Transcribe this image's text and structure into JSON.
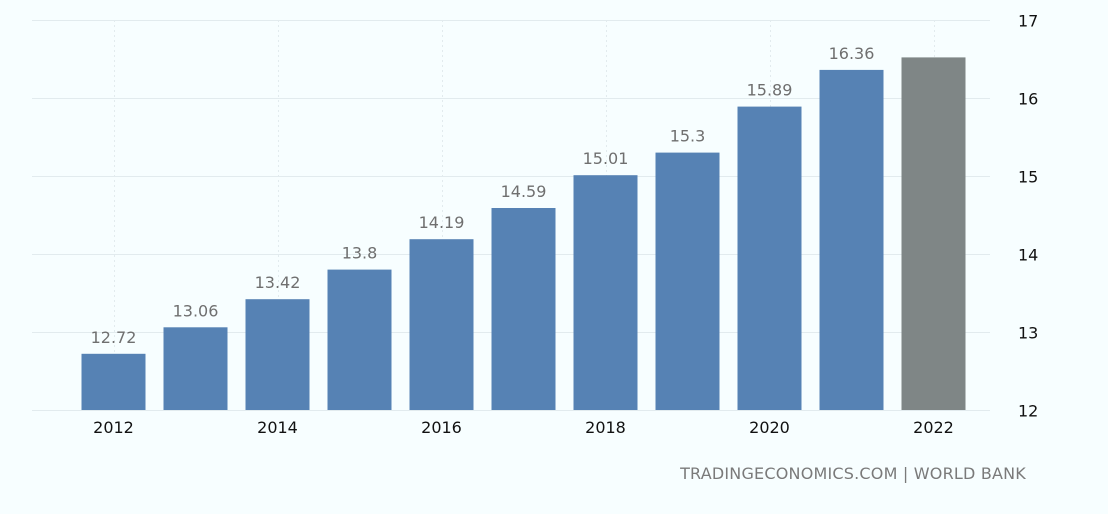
{
  "chart_data": {
    "type": "bar",
    "categories": [
      "2012",
      "2013",
      "2014",
      "2015",
      "2016",
      "2017",
      "2018",
      "2019",
      "2020",
      "2021",
      "2022"
    ],
    "values": [
      12.72,
      13.06,
      13.42,
      13.8,
      14.19,
      14.59,
      15.01,
      15.3,
      15.89,
      16.36,
      16.52
    ],
    "data_labels": [
      "12.72",
      "13.06",
      "13.42",
      "13.8",
      "14.19",
      "14.59",
      "15.01",
      "15.3",
      "15.89",
      "16.36",
      ""
    ],
    "x_tick_labels": [
      "2012",
      "2014",
      "2016",
      "2018",
      "2020",
      "2022"
    ],
    "y_ticks": [
      12,
      13,
      14,
      15,
      16,
      17
    ],
    "ylim": [
      12,
      17
    ],
    "title": "",
    "xlabel": "",
    "ylabel": "",
    "y_axis_side": "right",
    "grid": true,
    "bar_colors": {
      "default": "#5682b4",
      "forecast": "#7f8686"
    },
    "forecast_categories": [
      "2022"
    ],
    "source": "TRADINGECONOMICS.COM | WORLD BANK"
  }
}
